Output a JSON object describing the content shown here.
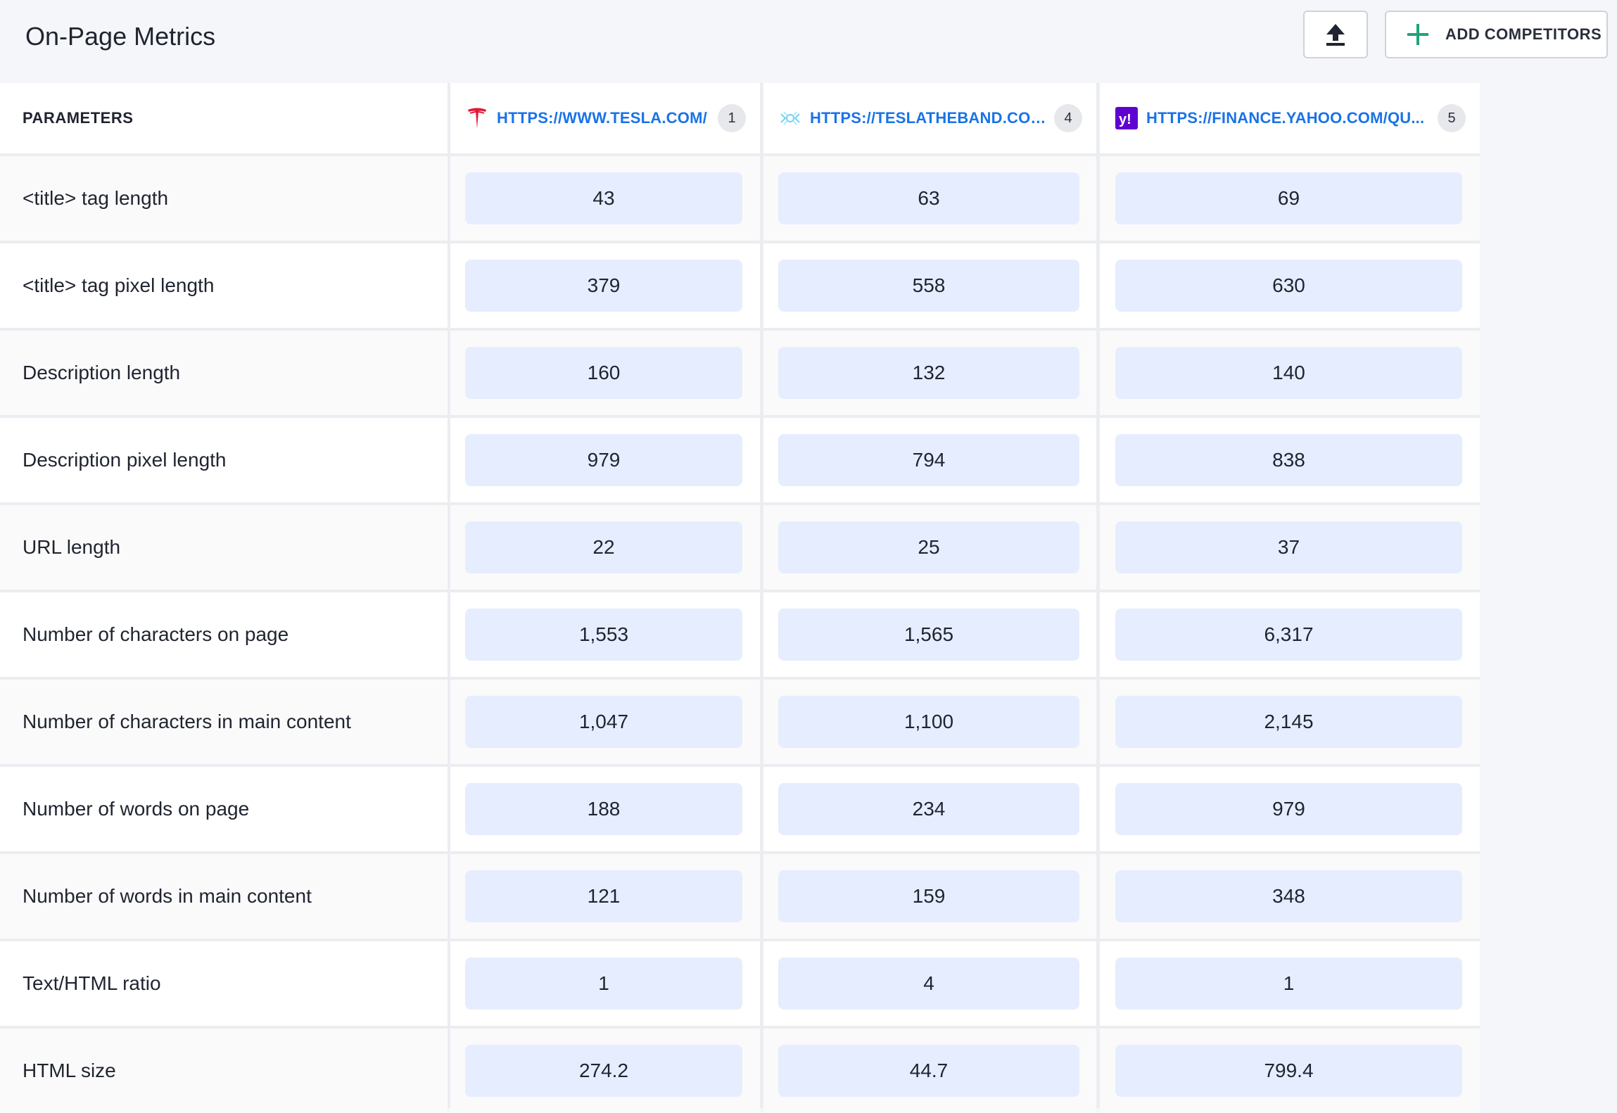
{
  "header": {
    "title": "On-Page Metrics",
    "export_icon": "upload-icon",
    "add_competitors_label": "ADD COMPETITORS",
    "add_icon": "plus-icon",
    "accent_color": "#1fa37a"
  },
  "table": {
    "params_header": "PARAMETERS",
    "sites": [
      {
        "url": "HTTPS://WWW.TESLA.COM/",
        "rank": "1",
        "icon": "tesla-logo-icon"
      },
      {
        "url": "HTTPS://TESLATHEBAND.COM/",
        "rank": "4",
        "icon": "teslatheband-logo-icon"
      },
      {
        "url": "HTTPS://FINANCE.YAHOO.COM/QU...",
        "rank": "5",
        "icon": "yahoo-logo-icon"
      }
    ],
    "rows": [
      {
        "label": "<title> tag length",
        "values": [
          "43",
          "63",
          "69"
        ]
      },
      {
        "label": "<title> tag pixel length",
        "values": [
          "379",
          "558",
          "630"
        ]
      },
      {
        "label": "Description length",
        "values": [
          "160",
          "132",
          "140"
        ]
      },
      {
        "label": "Description pixel length",
        "values": [
          "979",
          "794",
          "838"
        ]
      },
      {
        "label": "URL length",
        "values": [
          "22",
          "25",
          "37"
        ]
      },
      {
        "label": "Number of characters on page",
        "values": [
          "1,553",
          "1,565",
          "6,317"
        ]
      },
      {
        "label": "Number of characters in main content",
        "values": [
          "1,047",
          "1,100",
          "2,145"
        ]
      },
      {
        "label": "Number of words on page",
        "values": [
          "188",
          "234",
          "979"
        ]
      },
      {
        "label": "Number of words in main content",
        "values": [
          "121",
          "159",
          "348"
        ]
      },
      {
        "label": "Text/HTML ratio",
        "values": [
          "1",
          "4",
          "1"
        ]
      },
      {
        "label": "HTML size",
        "values": [
          "274.2",
          "44.7",
          "799.4"
        ]
      }
    ]
  }
}
